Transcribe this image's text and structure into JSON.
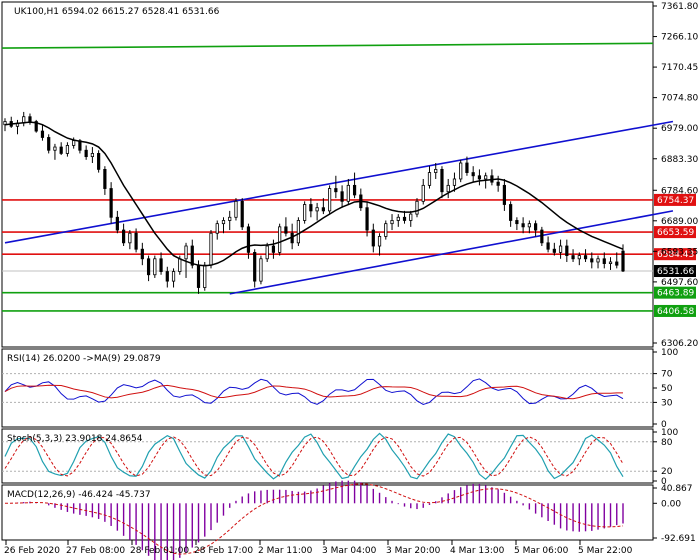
{
  "chart_data": {
    "type": "candlestick",
    "symbol_header": "UK100,H1  6594.02 6615.27 6528.41 6531.66",
    "main": {
      "ylim": [
        6306.2,
        7361.8
      ],
      "yticks": [
        "7361.80",
        "7266.10",
        "7170.45",
        "7074.80",
        "6979.00",
        "6883.30",
        "6784.60",
        "6689.00",
        "6593.35",
        "6497.60",
        "6306.20"
      ],
      "horizontal_levels": [
        {
          "value": 6754.37,
          "label": "6754.37",
          "color": "#e01010"
        },
        {
          "value": 6653.59,
          "label": "6653.59",
          "color": "#e01010"
        },
        {
          "value": 6584.43,
          "label": "6584.43",
          "color": "#e01010"
        },
        {
          "value": 6463.89,
          "label": "6463.89",
          "color": "#10a010"
        },
        {
          "value": 6406.58,
          "label": "6406.58",
          "color": "#10a010"
        }
      ],
      "current_price": {
        "value": 6531.66,
        "label": "6531.66"
      },
      "resistance_line": {
        "start": 7230,
        "end": 7245,
        "color": "#10a010"
      },
      "channel": {
        "color": "#1010d0",
        "upper": {
          "from": [
            0,
            6620
          ],
          "to": [
            107,
            7000
          ]
        },
        "lower": {
          "from": [
            36,
            6460
          ],
          "to": [
            107,
            6720
          ]
        }
      },
      "candles_ohlc": [
        [
          6990,
          7010,
          6970,
          7000
        ],
        [
          7000,
          7015,
          6980,
          6985
        ],
        [
          6985,
          7005,
          6960,
          6995
        ],
        [
          6995,
          7030,
          6985,
          7015
        ],
        [
          7015,
          7025,
          6990,
          7000
        ],
        [
          7000,
          7005,
          6965,
          6970
        ],
        [
          6970,
          6990,
          6940,
          6950
        ],
        [
          6950,
          6960,
          6900,
          6910
        ],
        [
          6910,
          6930,
          6880,
          6920
        ],
        [
          6920,
          6935,
          6895,
          6900
        ],
        [
          6900,
          6935,
          6890,
          6925
        ],
        [
          6925,
          6950,
          6915,
          6940
        ],
        [
          6940,
          6945,
          6900,
          6910
        ],
        [
          6910,
          6925,
          6880,
          6890
        ],
        [
          6890,
          6920,
          6870,
          6900
        ],
        [
          6900,
          6910,
          6840,
          6850
        ],
        [
          6850,
          6860,
          6770,
          6790
        ],
        [
          6790,
          6810,
          6680,
          6700
        ],
        [
          6700,
          6720,
          6650,
          6660
        ],
        [
          6660,
          6680,
          6610,
          6620
        ],
        [
          6620,
          6660,
          6600,
          6650
        ],
        [
          6650,
          6665,
          6590,
          6600
        ],
        [
          6600,
          6620,
          6550,
          6570
        ],
        [
          6570,
          6580,
          6500,
          6520
        ],
        [
          6520,
          6580,
          6510,
          6570
        ],
        [
          6570,
          6590,
          6520,
          6530
        ],
        [
          6530,
          6545,
          6480,
          6500
        ],
        [
          6500,
          6540,
          6480,
          6530
        ],
        [
          6530,
          6580,
          6520,
          6570
        ],
        [
          6570,
          6620,
          6510,
          6610
        ],
        [
          6610,
          6630,
          6540,
          6550
        ],
        [
          6550,
          6565,
          6460,
          6480
        ],
        [
          6480,
          6560,
          6470,
          6550
        ],
        [
          6550,
          6660,
          6540,
          6650
        ],
        [
          6650,
          6690,
          6630,
          6680
        ],
        [
          6680,
          6700,
          6650,
          6690
        ],
        [
          6690,
          6720,
          6660,
          6700
        ],
        [
          6700,
          6760,
          6690,
          6750
        ],
        [
          6750,
          6760,
          6660,
          6670
        ],
        [
          6670,
          6680,
          6570,
          6590
        ],
        [
          6590,
          6600,
          6480,
          6500
        ],
        [
          6500,
          6580,
          6490,
          6570
        ],
        [
          6570,
          6620,
          6560,
          6610
        ],
        [
          6610,
          6630,
          6570,
          6590
        ],
        [
          6590,
          6680,
          6580,
          6670
        ],
        [
          6670,
          6700,
          6640,
          6650
        ],
        [
          6650,
          6680,
          6600,
          6620
        ],
        [
          6620,
          6700,
          6610,
          6690
        ],
        [
          6690,
          6750,
          6680,
          6740
        ],
        [
          6740,
          6760,
          6700,
          6720
        ],
        [
          6720,
          6745,
          6690,
          6730
        ],
        [
          6730,
          6760,
          6710,
          6720
        ],
        [
          6720,
          6800,
          6710,
          6790
        ],
        [
          6790,
          6830,
          6760,
          6780
        ],
        [
          6780,
          6800,
          6730,
          6750
        ],
        [
          6750,
          6820,
          6740,
          6800
        ],
        [
          6800,
          6840,
          6760,
          6770
        ],
        [
          6770,
          6790,
          6720,
          6730
        ],
        [
          6730,
          6750,
          6640,
          6660
        ],
        [
          6660,
          6680,
          6590,
          6610
        ],
        [
          6610,
          6650,
          6580,
          6640
        ],
        [
          6640,
          6690,
          6630,
          6680
        ],
        [
          6680,
          6710,
          6660,
          6690
        ],
        [
          6690,
          6710,
          6670,
          6700
        ],
        [
          6700,
          6720,
          6680,
          6690
        ],
        [
          6690,
          6720,
          6670,
          6710
        ],
        [
          6710,
          6760,
          6700,
          6750
        ],
        [
          6750,
          6820,
          6740,
          6800
        ],
        [
          6800,
          6860,
          6790,
          6840
        ],
        [
          6840,
          6870,
          6820,
          6850
        ],
        [
          6850,
          6860,
          6760,
          6780
        ],
        [
          6780,
          6820,
          6760,
          6800
        ],
        [
          6800,
          6840,
          6780,
          6820
        ],
        [
          6820,
          6880,
          6810,
          6870
        ],
        [
          6870,
          6890,
          6830,
          6840
        ],
        [
          6840,
          6860,
          6810,
          6830
        ],
        [
          6830,
          6850,
          6800,
          6820
        ],
        [
          6820,
          6840,
          6790,
          6830
        ],
        [
          6830,
          6850,
          6800,
          6810
        ],
        [
          6810,
          6830,
          6780,
          6800
        ],
        [
          6800,
          6820,
          6720,
          6740
        ],
        [
          6740,
          6750,
          6670,
          6690
        ],
        [
          6690,
          6700,
          6660,
          6680
        ],
        [
          6680,
          6700,
          6650,
          6670
        ],
        [
          6670,
          6690,
          6650,
          6680
        ],
        [
          6680,
          6690,
          6640,
          6660
        ],
        [
          6660,
          6670,
          6610,
          6620
        ],
        [
          6620,
          6640,
          6590,
          6600
        ],
        [
          6600,
          6620,
          6580,
          6590
        ],
        [
          6590,
          6630,
          6570,
          6610
        ],
        [
          6610,
          6630,
          6560,
          6580
        ],
        [
          6580,
          6600,
          6560,
          6570
        ],
        [
          6570,
          6590,
          6550,
          6580
        ],
        [
          6580,
          6600,
          6560,
          6570
        ],
        [
          6570,
          6590,
          6540,
          6560
        ],
        [
          6560,
          6580,
          6540,
          6570
        ],
        [
          6570,
          6590,
          6540,
          6555
        ],
        [
          6555,
          6575,
          6535,
          6560
        ],
        [
          6560,
          6590,
          6540,
          6550
        ],
        [
          6594.02,
          6615.27,
          6528.41,
          6531.66
        ]
      ],
      "ma_values": [
        6990,
        6992,
        6994,
        6996,
        6998,
        6996,
        6990,
        6980,
        6968,
        6958,
        6948,
        6942,
        6938,
        6935,
        6930,
        6920,
        6900,
        6870,
        6835,
        6800,
        6770,
        6740,
        6710,
        6680,
        6650,
        6625,
        6600,
        6580,
        6570,
        6562,
        6555,
        6550,
        6548,
        6550,
        6556,
        6565,
        6578,
        6592,
        6603,
        6610,
        6613,
        6612,
        6613,
        6616,
        6622,
        6630,
        6638,
        6648,
        6660,
        6672,
        6685,
        6698,
        6710,
        6722,
        6732,
        6740,
        6748,
        6750,
        6748,
        6742,
        6736,
        6728,
        6722,
        6718,
        6716,
        6716,
        6720,
        6728,
        6740,
        6752,
        6765,
        6776,
        6786,
        6796,
        6804,
        6810,
        6814,
        6816,
        6818,
        6820,
        6816,
        6808,
        6798,
        6786,
        6774,
        6760,
        6746,
        6730,
        6714,
        6698,
        6684,
        6672,
        6660,
        6650,
        6640,
        6632,
        6624,
        6616,
        6608,
        6600
      ]
    },
    "rsi": {
      "label": "RSI(14) 26.0200  ->MA(9) 29.0879",
      "ylim": [
        0,
        100
      ],
      "yticks": [
        "100",
        "70",
        "50",
        "30",
        "0"
      ]
    },
    "stoch": {
      "label": "Stoch(5,3,3) 23.9018 24.8654",
      "ylim": [
        0,
        100
      ],
      "yticks": [
        "100",
        "80",
        "20",
        "0"
      ]
    },
    "macd": {
      "label": "MACD(12,26,9) -46.424 -45.737",
      "yticks": [
        "40.867",
        "0.00",
        "-92.691"
      ]
    },
    "x_labels": [
      "26 Feb 2020",
      "27 Feb 08:00",
      "28 Feb 01:00",
      "28 Feb 17:00",
      "2 Mar 11:00",
      "3 Mar 04:00",
      "3 Mar 20:00",
      "4 Mar 13:00",
      "5 Mar 06:00",
      "5 Mar 22:00"
    ],
    "colors": {
      "candle": "#000000",
      "ma": "#000000",
      "rsi": "#1010d0",
      "rsi_ma": "#d01010",
      "stoch_main": "#20a0b0",
      "stoch_signal": "#d01010",
      "macd_hist": "#8000a0",
      "macd_signal": "#d01010"
    }
  }
}
